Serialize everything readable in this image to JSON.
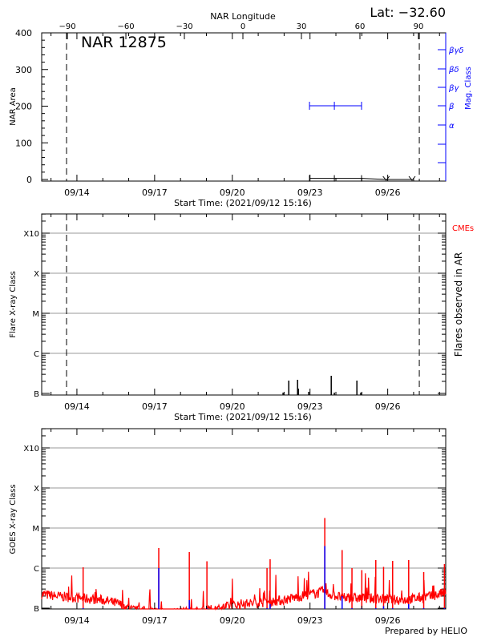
{
  "chart_data": [
    {
      "type": "line",
      "panel": "nar",
      "title": "NAR 12875",
      "latitude_label": "Lat: −32.60",
      "top_axis_label": "NAR Longitude",
      "top_ticks": [
        -90,
        -60,
        -30,
        0,
        30,
        60,
        90
      ],
      "ylabel": "NAR Area",
      "ylim": [
        0,
        400
      ],
      "yticks": [
        0,
        100,
        200,
        300,
        400
      ],
      "right_label": "Mag. Class",
      "mag_classes": [
        "α",
        "β",
        "βγ",
        "βδ",
        "βγδ"
      ],
      "xlabel": "Start Time: (2021/09/12 15:16)",
      "limb_crossing_days": [
        0.96,
        14.58
      ],
      "area_series": {
        "x_days": [
          10.34,
          11.3,
          12.35,
          13.3,
          14.3
        ],
        "values": [
          3,
          3,
          3,
          0,
          0
        ]
      },
      "mag_series": {
        "x_days": [
          10.34,
          11.3,
          12.35
        ],
        "class": [
          "β",
          "β",
          "β"
        ]
      }
    },
    {
      "type": "bar",
      "panel": "flares",
      "ylabel": "Flare X-ray Class",
      "right_label": "Flares observed in AR",
      "cme_label": "CMEs",
      "xlabel": "Start Time: (2021/09/12 15:16)",
      "limb_crossing_days": [
        0.96,
        14.58
      ],
      "flares": {
        "x_days": [
          9.32,
          9.54,
          9.88,
          9.91,
          10.31,
          11.18,
          11.3,
          12.17,
          12.32
        ],
        "log_flux": [
          -6.98,
          -6.68,
          -6.66,
          -6.88,
          -6.96,
          -6.56,
          -6.98,
          -6.68,
          -6.98
        ]
      }
    },
    {
      "type": "line",
      "panel": "goes",
      "ylabel": "GOES X-ray Class",
      "baseline": {
        "x_days": [
          0,
          0.55,
          1.5,
          2.4,
          3.0,
          3.5,
          4.5,
          6.1,
          7.7,
          8.7,
          9.3,
          10.8,
          11.7,
          12.6,
          13.9,
          15.1,
          15.6
        ],
        "log_flux": [
          -6.65,
          -6.7,
          -6.75,
          -6.8,
          -6.9,
          -7.05,
          -7.1,
          -7.1,
          -6.9,
          -6.85,
          -6.8,
          -6.6,
          -6.75,
          -6.75,
          -6.8,
          -6.7,
          -6.6
        ]
      },
      "peaks": {
        "x_days": [
          1.6,
          4.52,
          5.7,
          6.38,
          8.7,
          8.82,
          10.93,
          11.6,
          11.98,
          12.36,
          12.9,
          13.2,
          13.55,
          14.17,
          14.75,
          15.55
        ],
        "log_flux": [
          -5.98,
          -5.5,
          -5.6,
          -5.83,
          -6.0,
          -5.78,
          -4.75,
          -5.55,
          -6.0,
          -6.05,
          -5.8,
          -5.97,
          -5.82,
          -5.8,
          -6.1,
          -5.9
        ],
        "blue_log_flux": [
          -7.0,
          -6.0,
          -6.8,
          -7.0,
          -7.0,
          -6.9,
          -5.45,
          -6.7,
          -7.0,
          -7.0,
          -7.0,
          -6.95,
          -7.0,
          -6.9,
          -7.0,
          -7.0
        ]
      },
      "class_labels": [
        "B",
        "C",
        "M",
        "X",
        "X10"
      ],
      "class_log_flux": [
        -7,
        -6,
        -5,
        -4,
        -3
      ]
    }
  ],
  "xaxis": {
    "date_labels": [
      "09/14",
      "09/17",
      "09/20",
      "09/23",
      "09/26"
    ],
    "date_label_days": [
      1.36,
      4.36,
      7.36,
      10.36,
      13.36
    ],
    "range_days": [
      0,
      15.6
    ]
  },
  "colors": {
    "goes_long": "#ff0000",
    "goes_short": "#0000ff",
    "mag": "#0000ff",
    "cme": "#ff0000",
    "grid": "#9a9a9a"
  },
  "footer": "Prepared by HELIO"
}
